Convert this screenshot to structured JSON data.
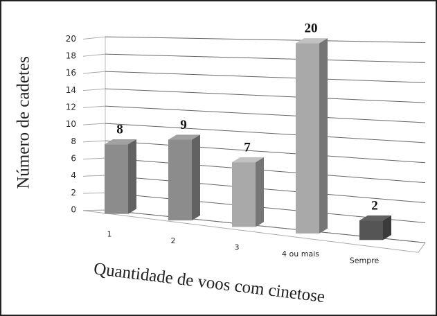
{
  "chart_data": {
    "type": "bar",
    "categories": [
      "1",
      "2",
      "3",
      "4 ou mais",
      "Sempre"
    ],
    "values": [
      8,
      9,
      7,
      20,
      2
    ],
    "colors": [
      "#8c8c8c",
      "#8c8c8c",
      "#a9a9a9",
      "#a9a9a9",
      "#555555"
    ],
    "ylim": [
      0,
      20
    ],
    "yticks": [
      0,
      2,
      4,
      6,
      8,
      10,
      12,
      14,
      16,
      18,
      20
    ],
    "ylabel": "Número de cadetes",
    "xlabel": "Quantidade de voos com cinetose",
    "grid": true
  }
}
